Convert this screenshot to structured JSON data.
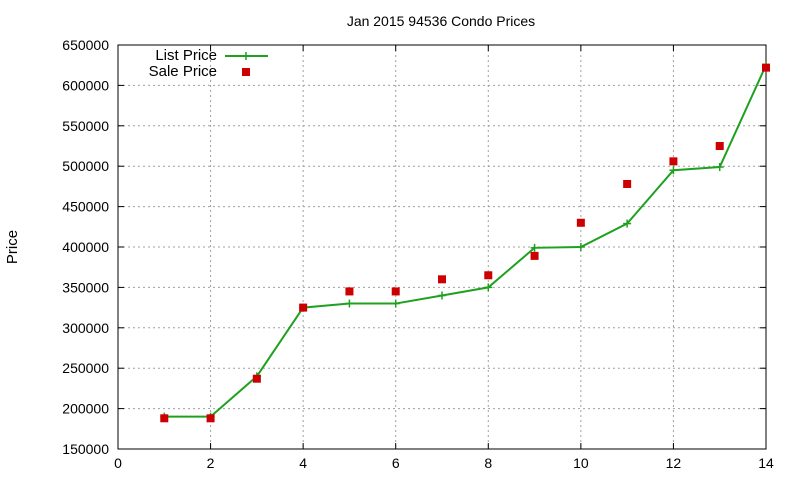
{
  "chart_data": {
    "type": "line",
    "title": "Jan 2015 94536 Condo Prices",
    "xlabel": "",
    "ylabel": "Price",
    "xlim": [
      0,
      14
    ],
    "ylim": [
      150000,
      650000
    ],
    "xticks": [
      0,
      2,
      4,
      6,
      8,
      10,
      12,
      14
    ],
    "yticks": [
      150000,
      200000,
      250000,
      300000,
      350000,
      400000,
      450000,
      500000,
      550000,
      600000,
      650000
    ],
    "grid": true,
    "legend_position": "top-left",
    "series": [
      {
        "name": "List Price",
        "style": "line-with-plus-markers",
        "color": "#1fa01f",
        "x": [
          1,
          2,
          3,
          4,
          5,
          6,
          7,
          8,
          9,
          10,
          11,
          12,
          13,
          14
        ],
        "y": [
          190000,
          190000,
          240000,
          325000,
          330000,
          330000,
          340000,
          350000,
          399000,
          400000,
          429000,
          495000,
          499000,
          625000
        ]
      },
      {
        "name": "Sale Price",
        "style": "square-markers",
        "color": "#cc0000",
        "x": [
          1,
          2,
          3,
          4,
          5,
          6,
          7,
          8,
          9,
          10,
          11,
          12,
          13,
          14
        ],
        "y": [
          188000,
          188000,
          237000,
          325000,
          345000,
          345000,
          360000,
          365000,
          389000,
          430000,
          478000,
          506000,
          525000,
          622000
        ]
      }
    ]
  }
}
